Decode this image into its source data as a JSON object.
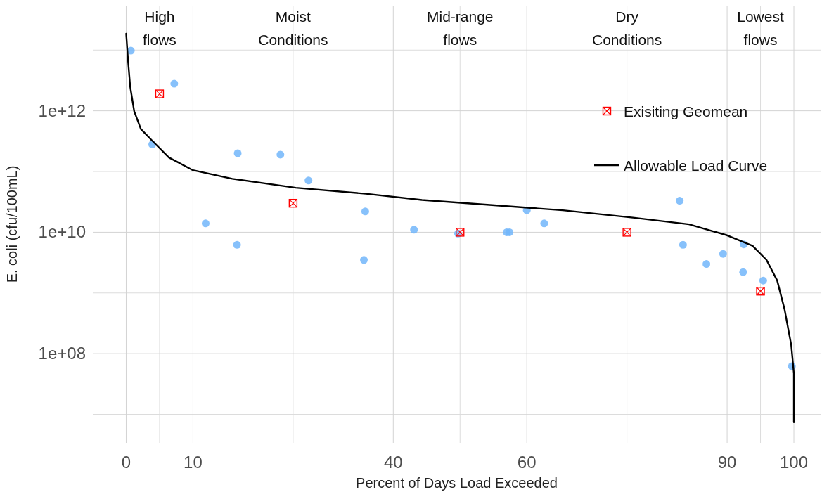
{
  "chart_data": {
    "type": "scatter",
    "xlabel": "Percent of Days Load Exceeded",
    "ylabel": "E. coli (cfu/100mL)",
    "log": "y",
    "grid": true,
    "legend": "top right",
    "xlim": [
      -5,
      104
    ],
    "xticks": [
      0,
      10,
      40,
      60,
      90,
      100
    ],
    "ylim": [
      3400000.0,
      54000000000000.0
    ],
    "yticks": [
      {
        "value": 100000000.0,
        "label": "1e+08"
      },
      {
        "value": 10000000000.0,
        "label": "1e+10"
      },
      {
        "value": 1000000000000.0,
        "label": "1e+12"
      }
    ],
    "annotations": [
      "High flows",
      "Moist Conditions",
      "Mid-range flows",
      "Dry Conditions",
      "Lowest flows"
    ],
    "series": [
      {
        "color": "#72b6fa",
        "marker": "circle",
        "x": [
          0.7,
          7.2,
          3.9,
          11.9,
          16.7,
          16.6,
          23.1,
          27.3,
          35.8,
          35.6,
          43.1,
          49.7,
          57.0,
          57.4,
          60,
          62.6,
          82.9,
          83.4,
          86.9,
          89.4,
          92.5,
          92.4,
          95.4,
          99.7
        ],
        "values": [
          9800000000000.0,
          2800000000000.0,
          280000000000.0,
          14000000000.0,
          200000000000.0,
          6200000000.0,
          190000000000.0,
          71000000000.0,
          22000000000.0,
          3500000000.0,
          11000000000.0,
          9500000000.0,
          10000000000.0,
          10000000000.0,
          23000000000.0,
          14000000000.0,
          33000000000.0,
          6200000000.0,
          3000000000.0,
          4400000000.0,
          6300000000.0,
          2200000000.0,
          1600000000.0,
          62000000.0
        ]
      },
      {
        "name": "Exisiting Geomean",
        "color": "#ff0000",
        "marker": "square",
        "x": [
          5,
          25,
          50,
          75,
          95
        ],
        "values": [
          1900000000000.0,
          30000000000.0,
          10000000000.0,
          10000000000.0,
          1070000000.0
        ]
      },
      {
        "type": "line",
        "name": "Allowable Load Curve",
        "color": "#000000",
        "marker": "none",
        "line_style": "solid",
        "x": [
          0,
          0.3,
          0.6,
          1.2,
          2.2,
          3.8,
          6.4,
          10,
          15.9,
          25.4,
          35.9,
          44.3,
          54.8,
          65.4,
          75.9,
          84.3,
          90,
          93.8,
          95.9,
          97.5,
          98.6,
          99.6,
          100,
          100
        ],
        "values": [
          18600000000000.0,
          6300000000000.0,
          2500000000000.0,
          980000000000.0,
          500000000000.0,
          330000000000.0,
          170000000000.0,
          105000000000.0,
          76000000000.0,
          54000000000.0,
          43000000000.0,
          34000000000.0,
          28000000000.0,
          23000000000.0,
          17400000000.0,
          13500000000.0,
          8900000000.0,
          6000000000.0,
          3500000000.0,
          1600000000.0,
          540000000.0,
          140000000.0,
          47000000.0,
          7400000.0
        ]
      }
    ]
  }
}
